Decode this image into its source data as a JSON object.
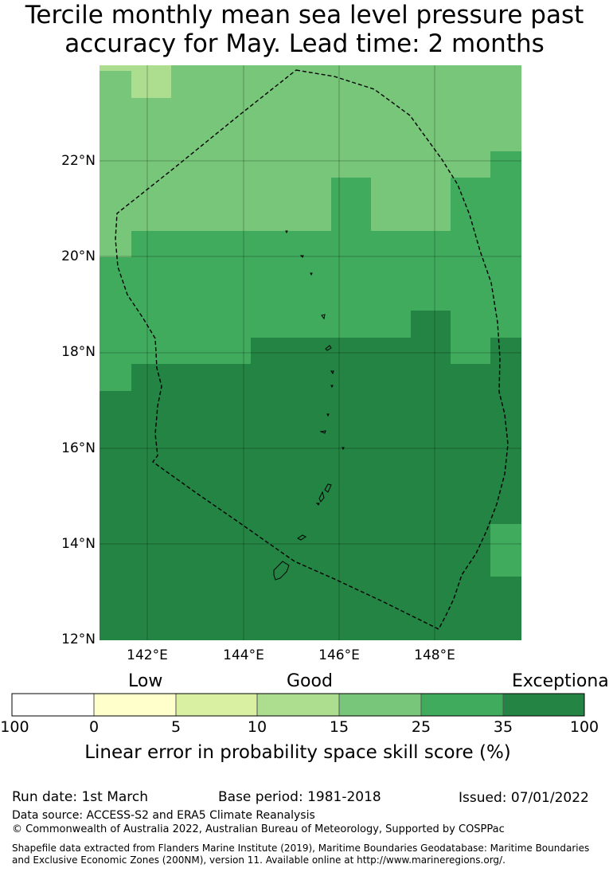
{
  "title": {
    "line1": "Tercile monthly mean sea level pressure past",
    "line2": "accuracy for May. Lead time: 2 months"
  },
  "map": {
    "lat_ticks": [
      "22°N",
      "20°N",
      "18°N",
      "16°N",
      "14°N",
      "12°N"
    ],
    "lon_ticks": [
      "142°E",
      "144°E",
      "146°E",
      "148°E"
    ],
    "extent": {
      "lon": [
        141.0,
        149.6
      ],
      "lat": [
        12.0,
        23.75
      ]
    }
  },
  "legend": {
    "categories": [
      "Low",
      "Good",
      "Exceptional"
    ],
    "ticks": [
      "-100",
      "0",
      "5",
      "10",
      "15",
      "25",
      "35",
      "100"
    ],
    "colors": [
      "#ffffff",
      "#ffffcc",
      "#d9f0a3",
      "#addd8e",
      "#78c679",
      "#41ab5d",
      "#238443"
    ],
    "label": "Linear error in probability space skill score (%)"
  },
  "footer": {
    "run_date": "Run date: 1st March",
    "base_period": "Base period: 1981-2018",
    "issued": "Issued: 07/01/2022",
    "data_source": "Data source: ACCESS-S2 and ERA5 Climate Reanalysis",
    "copyright": "© Commonwealth of Australia 2022, Australian Bureau of Meteorology, Supported by COSPPac",
    "shapefile_line1": "Shapefile data extracted from Flanders Marine Institute (2019), Maritime Boundaries Geodatabase: Maritime Boundaries",
    "shapefile_line2": "and Exclusive Economic Zones (200NM), version 11. Available online at http://www.marineregions.org/."
  }
}
